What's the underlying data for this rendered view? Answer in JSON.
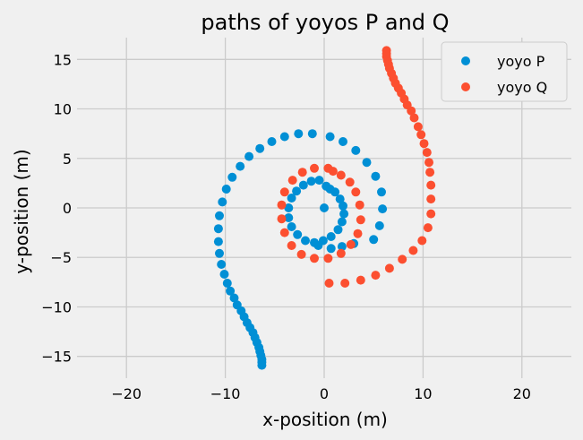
{
  "chart_data": {
    "type": "scatter",
    "title": "paths of yoyos P and Q",
    "xlabel": "x-position (m)",
    "ylabel": "y-position (m)",
    "xlim": [
      -25,
      25
    ],
    "ylim": [
      -17.2,
      17.2
    ],
    "xticks": [
      -20,
      -10,
      0,
      10,
      20
    ],
    "yticks": [
      -15,
      -10,
      -5,
      0,
      5,
      10,
      15
    ],
    "grid": true,
    "legend_position": "top-right",
    "series": [
      {
        "name": "yoyo P",
        "color": "#008fd5",
        "points": [
          [
            0,
            0
          ],
          [
            0.2,
            2.2
          ],
          [
            0.6,
            1.9
          ],
          [
            1.1,
            1.6
          ],
          [
            1.6,
            0.9
          ],
          [
            1.9,
            0.2
          ],
          [
            2.0,
            -0.6
          ],
          [
            1.8,
            -1.4
          ],
          [
            1.4,
            -2.2
          ],
          [
            0.7,
            -2.9
          ],
          [
            -0.1,
            -3.3
          ],
          [
            -1.0,
            -3.5
          ],
          [
            -1.9,
            -3.3
          ],
          [
            -2.7,
            -2.7
          ],
          [
            -3.3,
            -1.9
          ],
          [
            -3.6,
            -1.0
          ],
          [
            -3.6,
            0.0
          ],
          [
            -3.3,
            1.0
          ],
          [
            -2.8,
            1.7
          ],
          [
            -2.1,
            2.3
          ],
          [
            -1.3,
            2.7
          ],
          [
            -0.5,
            2.8
          ],
          [
            0.6,
            7.2
          ],
          [
            1.9,
            6.7
          ],
          [
            3.2,
            5.8
          ],
          [
            4.3,
            4.6
          ],
          [
            5.2,
            3.2
          ],
          [
            5.8,
            1.6
          ],
          [
            5.9,
            -0.1
          ],
          [
            5.6,
            -1.8
          ],
          [
            5.0,
            -3.2
          ],
          [
            3.0,
            -3.6
          ],
          [
            1.8,
            -3.9
          ],
          [
            0.7,
            -4.1
          ],
          [
            -0.6,
            -3.8
          ],
          [
            -1.2,
            7.5
          ],
          [
            -2.6,
            7.5
          ],
          [
            -4.0,
            7.2
          ],
          [
            -5.3,
            6.7
          ],
          [
            -6.5,
            6.0
          ],
          [
            -7.6,
            5.2
          ],
          [
            -8.5,
            4.2
          ],
          [
            -9.3,
            3.1
          ],
          [
            -9.9,
            1.9
          ],
          [
            -10.3,
            0.6
          ],
          [
            -10.6,
            -0.8
          ],
          [
            -10.7,
            -2.1
          ],
          [
            -10.7,
            -3.4
          ],
          [
            -10.6,
            -4.6
          ],
          [
            -10.4,
            -5.7
          ],
          [
            -10.1,
            -6.7
          ],
          [
            -9.8,
            -7.6
          ],
          [
            -9.5,
            -8.4
          ],
          [
            -9.1,
            -9.1
          ],
          [
            -8.8,
            -9.8
          ],
          [
            -8.4,
            -10.4
          ],
          [
            -8.1,
            -11.0
          ],
          [
            -7.8,
            -11.6
          ],
          [
            -7.5,
            -12.1
          ],
          [
            -7.2,
            -12.6
          ],
          [
            -7.0,
            -13.1
          ],
          [
            -6.8,
            -13.6
          ],
          [
            -6.6,
            -14.1
          ],
          [
            -6.5,
            -14.5
          ],
          [
            -6.4,
            -14.9
          ],
          [
            -6.3,
            -15.3
          ],
          [
            -6.3,
            -15.6
          ],
          [
            -6.3,
            -15.9
          ]
        ]
      },
      {
        "name": "yoyo Q",
        "color": "#fc4f30",
        "points": [
          [
            0.4,
            4.0
          ],
          [
            -1.0,
            4.0
          ],
          [
            -2.2,
            3.6
          ],
          [
            -3.2,
            2.8
          ],
          [
            -4.0,
            1.6
          ],
          [
            -4.3,
            0.3
          ],
          [
            -4.3,
            -1.1
          ],
          [
            -4.0,
            -2.5
          ],
          [
            -3.3,
            -3.8
          ],
          [
            -2.3,
            -4.7
          ],
          [
            -1.0,
            -5.1
          ],
          [
            0.4,
            -5.1
          ],
          [
            1.7,
            -4.6
          ],
          [
            2.7,
            -3.7
          ],
          [
            3.4,
            -2.6
          ],
          [
            3.7,
            -1.2
          ],
          [
            3.6,
            0.3
          ],
          [
            3.2,
            1.6
          ],
          [
            2.6,
            2.6
          ],
          [
            1.7,
            3.3
          ],
          [
            0.9,
            3.7
          ],
          [
            0.5,
            -7.6
          ],
          [
            2.1,
            -7.6
          ],
          [
            3.7,
            -7.3
          ],
          [
            5.2,
            -6.8
          ],
          [
            6.6,
            -6.1
          ],
          [
            7.9,
            -5.2
          ],
          [
            9.0,
            -4.3
          ],
          [
            9.9,
            -3.3
          ],
          [
            10.5,
            -2.0
          ],
          [
            10.8,
            -0.6
          ],
          [
            10.8,
            0.9
          ],
          [
            10.8,
            2.3
          ],
          [
            10.7,
            3.6
          ],
          [
            10.6,
            4.6
          ],
          [
            10.4,
            5.6
          ],
          [
            10.1,
            6.5
          ],
          [
            9.8,
            7.4
          ],
          [
            9.5,
            8.2
          ],
          [
            9.1,
            9.1
          ],
          [
            8.8,
            9.8
          ],
          [
            8.4,
            10.4
          ],
          [
            8.1,
            11.0
          ],
          [
            7.8,
            11.6
          ],
          [
            7.5,
            12.1
          ],
          [
            7.2,
            12.6
          ],
          [
            7.0,
            13.1
          ],
          [
            6.8,
            13.6
          ],
          [
            6.6,
            14.1
          ],
          [
            6.5,
            14.5
          ],
          [
            6.4,
            14.9
          ],
          [
            6.3,
            15.3
          ],
          [
            6.3,
            15.6
          ],
          [
            6.3,
            15.9
          ]
        ]
      }
    ]
  }
}
